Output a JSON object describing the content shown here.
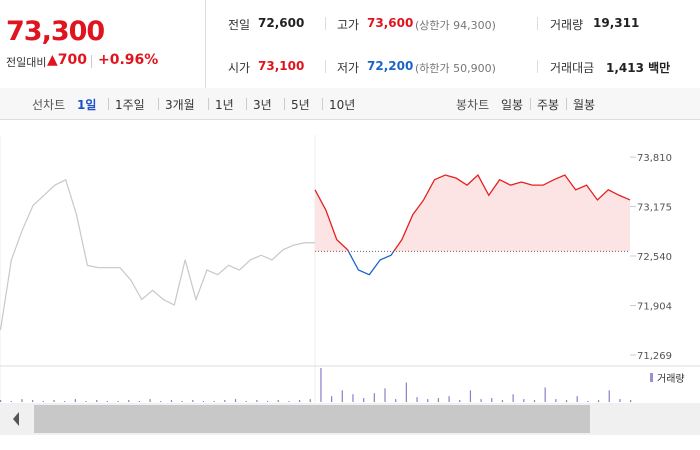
{
  "summary": {
    "price": "73,300",
    "change_label": "전일대비",
    "change_arrow": "▲",
    "change": "700",
    "change_rate": "+0.96%"
  },
  "stats": [
    {
      "label": "전일",
      "value": "72,600"
    },
    {
      "label": "고가",
      "value": "73,600",
      "note": "(상한가 94,300)"
    },
    {
      "label": "거래량",
      "value": "19,311"
    },
    {
      "label": "시가",
      "value": "73,100"
    },
    {
      "label": "저가",
      "value": "72,200",
      "note": "(하한가 50,900)"
    },
    {
      "label": "거래대금",
      "value": "1,413 백만"
    }
  ],
  "toolbar": {
    "line_label": "선차트",
    "periods": [
      "1일",
      "1주일",
      "3개월",
      "1년",
      "3년",
      "5년",
      "10년"
    ],
    "candle_label": "봉차트",
    "candles": [
      "일봉",
      "주봉",
      "월봉"
    ]
  },
  "chart": {
    "ylim": [
      71140,
      74030
    ],
    "yticks": [
      {
        "value": 73810,
        "label": "73,810"
      },
      {
        "value": 73175,
        "label": "73,175"
      },
      {
        "value": 72540,
        "label": "72,540"
      },
      {
        "value": 71904,
        "label": "71,904"
      },
      {
        "value": 71269,
        "label": "71,269"
      }
    ],
    "reference": 72600,
    "previous": {
      "color": "#c8c8c8",
      "values": [
        71590,
        72490,
        72870,
        73190,
        73320,
        73450,
        73520,
        73070,
        72420,
        72390,
        72390,
        72390,
        72230,
        71980,
        72100,
        71980,
        71910,
        72490,
        71980,
        72360,
        72300,
        72420,
        72360,
        72490,
        72550,
        72490,
        72620,
        72680,
        72710,
        72710
      ]
    },
    "today": {
      "up_color": "#e52020",
      "down_color": "#1e64c8",
      "fill": "#fde4e4",
      "values": [
        73390,
        73130,
        72750,
        72620,
        72360,
        72300,
        72490,
        72550,
        72750,
        73070,
        73260,
        73520,
        73580,
        73540,
        73450,
        73580,
        73320,
        73520,
        73450,
        73490,
        73450,
        73450,
        73520,
        73580,
        73390,
        73450,
        73260,
        73390,
        73320,
        73260
      ]
    },
    "volume_label": "거래량",
    "volume": [
      2,
      1,
      3,
      2,
      1,
      2,
      1,
      3,
      1,
      2,
      1,
      1,
      2,
      1,
      3,
      1,
      2,
      1,
      2,
      1,
      1,
      2,
      3,
      1,
      2,
      1,
      2,
      1,
      2,
      3,
      35,
      6,
      12,
      8,
      4,
      9,
      14,
      3,
      20,
      5,
      3,
      4,
      6,
      2,
      12,
      3,
      4,
      2,
      8,
      3,
      2,
      15,
      3,
      2,
      6,
      1,
      2,
      12,
      3,
      2
    ]
  }
}
